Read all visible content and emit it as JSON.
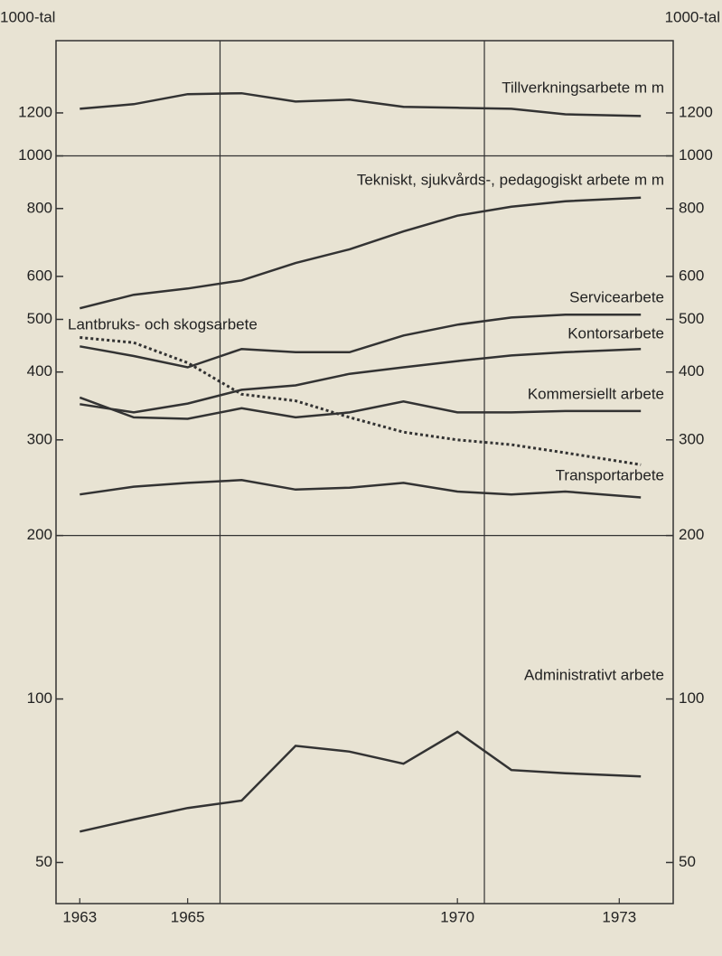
{
  "chart_data": {
    "type": "line",
    "y_scale": "log",
    "y_unit_left": "1000-tal",
    "y_unit_right": "1000-tal",
    "x": [
      1963,
      1964,
      1965,
      1966,
      1967,
      1968,
      1969,
      1970,
      1971,
      1972,
      1973.4
    ],
    "xlim": [
      1962.56,
      1974
    ],
    "xticks": [
      1963,
      1965,
      1970,
      1973
    ],
    "ylim": [
      42,
      1630
    ],
    "yticks": [
      50,
      100,
      200,
      300,
      400,
      500,
      600,
      800,
      1000,
      1200
    ],
    "grid_lines_y": [
      200,
      1000
    ],
    "grid_lines_x": [
      1965.6,
      1970.5
    ],
    "series": [
      {
        "name": "Tillverkningsarbete m m",
        "color": "#333333",
        "values": [
          1221,
          1245,
          1299,
          1304,
          1259,
          1269,
          1231,
          1226,
          1221,
          1193,
          1184
        ]
      },
      {
        "name": "Tekniskt, sjukvårds-, pedagogiskt arbete m m",
        "color": "#333333",
        "values": [
          524,
          555,
          570,
          590,
          635,
          673,
          726,
          776,
          806,
          825,
          838
        ]
      },
      {
        "name": "Servicearbete",
        "color": "#333333",
        "values": [
          446,
          428,
          408,
          441,
          435,
          435,
          467,
          489,
          504,
          510,
          510
        ]
      },
      {
        "name": "Lantbruks- och skogsarbete",
        "color": "#333333",
        "dotted": true,
        "values": [
          463,
          453,
          416,
          364,
          354,
          330,
          310,
          300,
          294,
          284,
          270
        ]
      },
      {
        "name": "Kontorsarbete",
        "color": "#333333",
        "values": [
          349,
          337,
          350,
          371,
          378,
          397,
          408,
          419,
          429,
          435,
          441
        ]
      },
      {
        "name": "Kommersiellt arbete",
        "color": "#333333",
        "values": [
          359,
          330,
          328,
          343,
          330,
          337,
          353,
          337,
          337,
          339,
          339
        ]
      },
      {
        "name": "Transportarbete",
        "color": "#333333",
        "values": [
          238,
          246,
          250,
          253,
          243,
          245,
          250,
          241,
          238,
          241,
          235
        ]
      },
      {
        "name": "Administrativt arbete",
        "color": "#333333",
        "values": [
          57,
          60,
          63,
          65,
          82,
          80,
          76,
          87,
          74,
          73,
          72
        ]
      }
    ]
  }
}
